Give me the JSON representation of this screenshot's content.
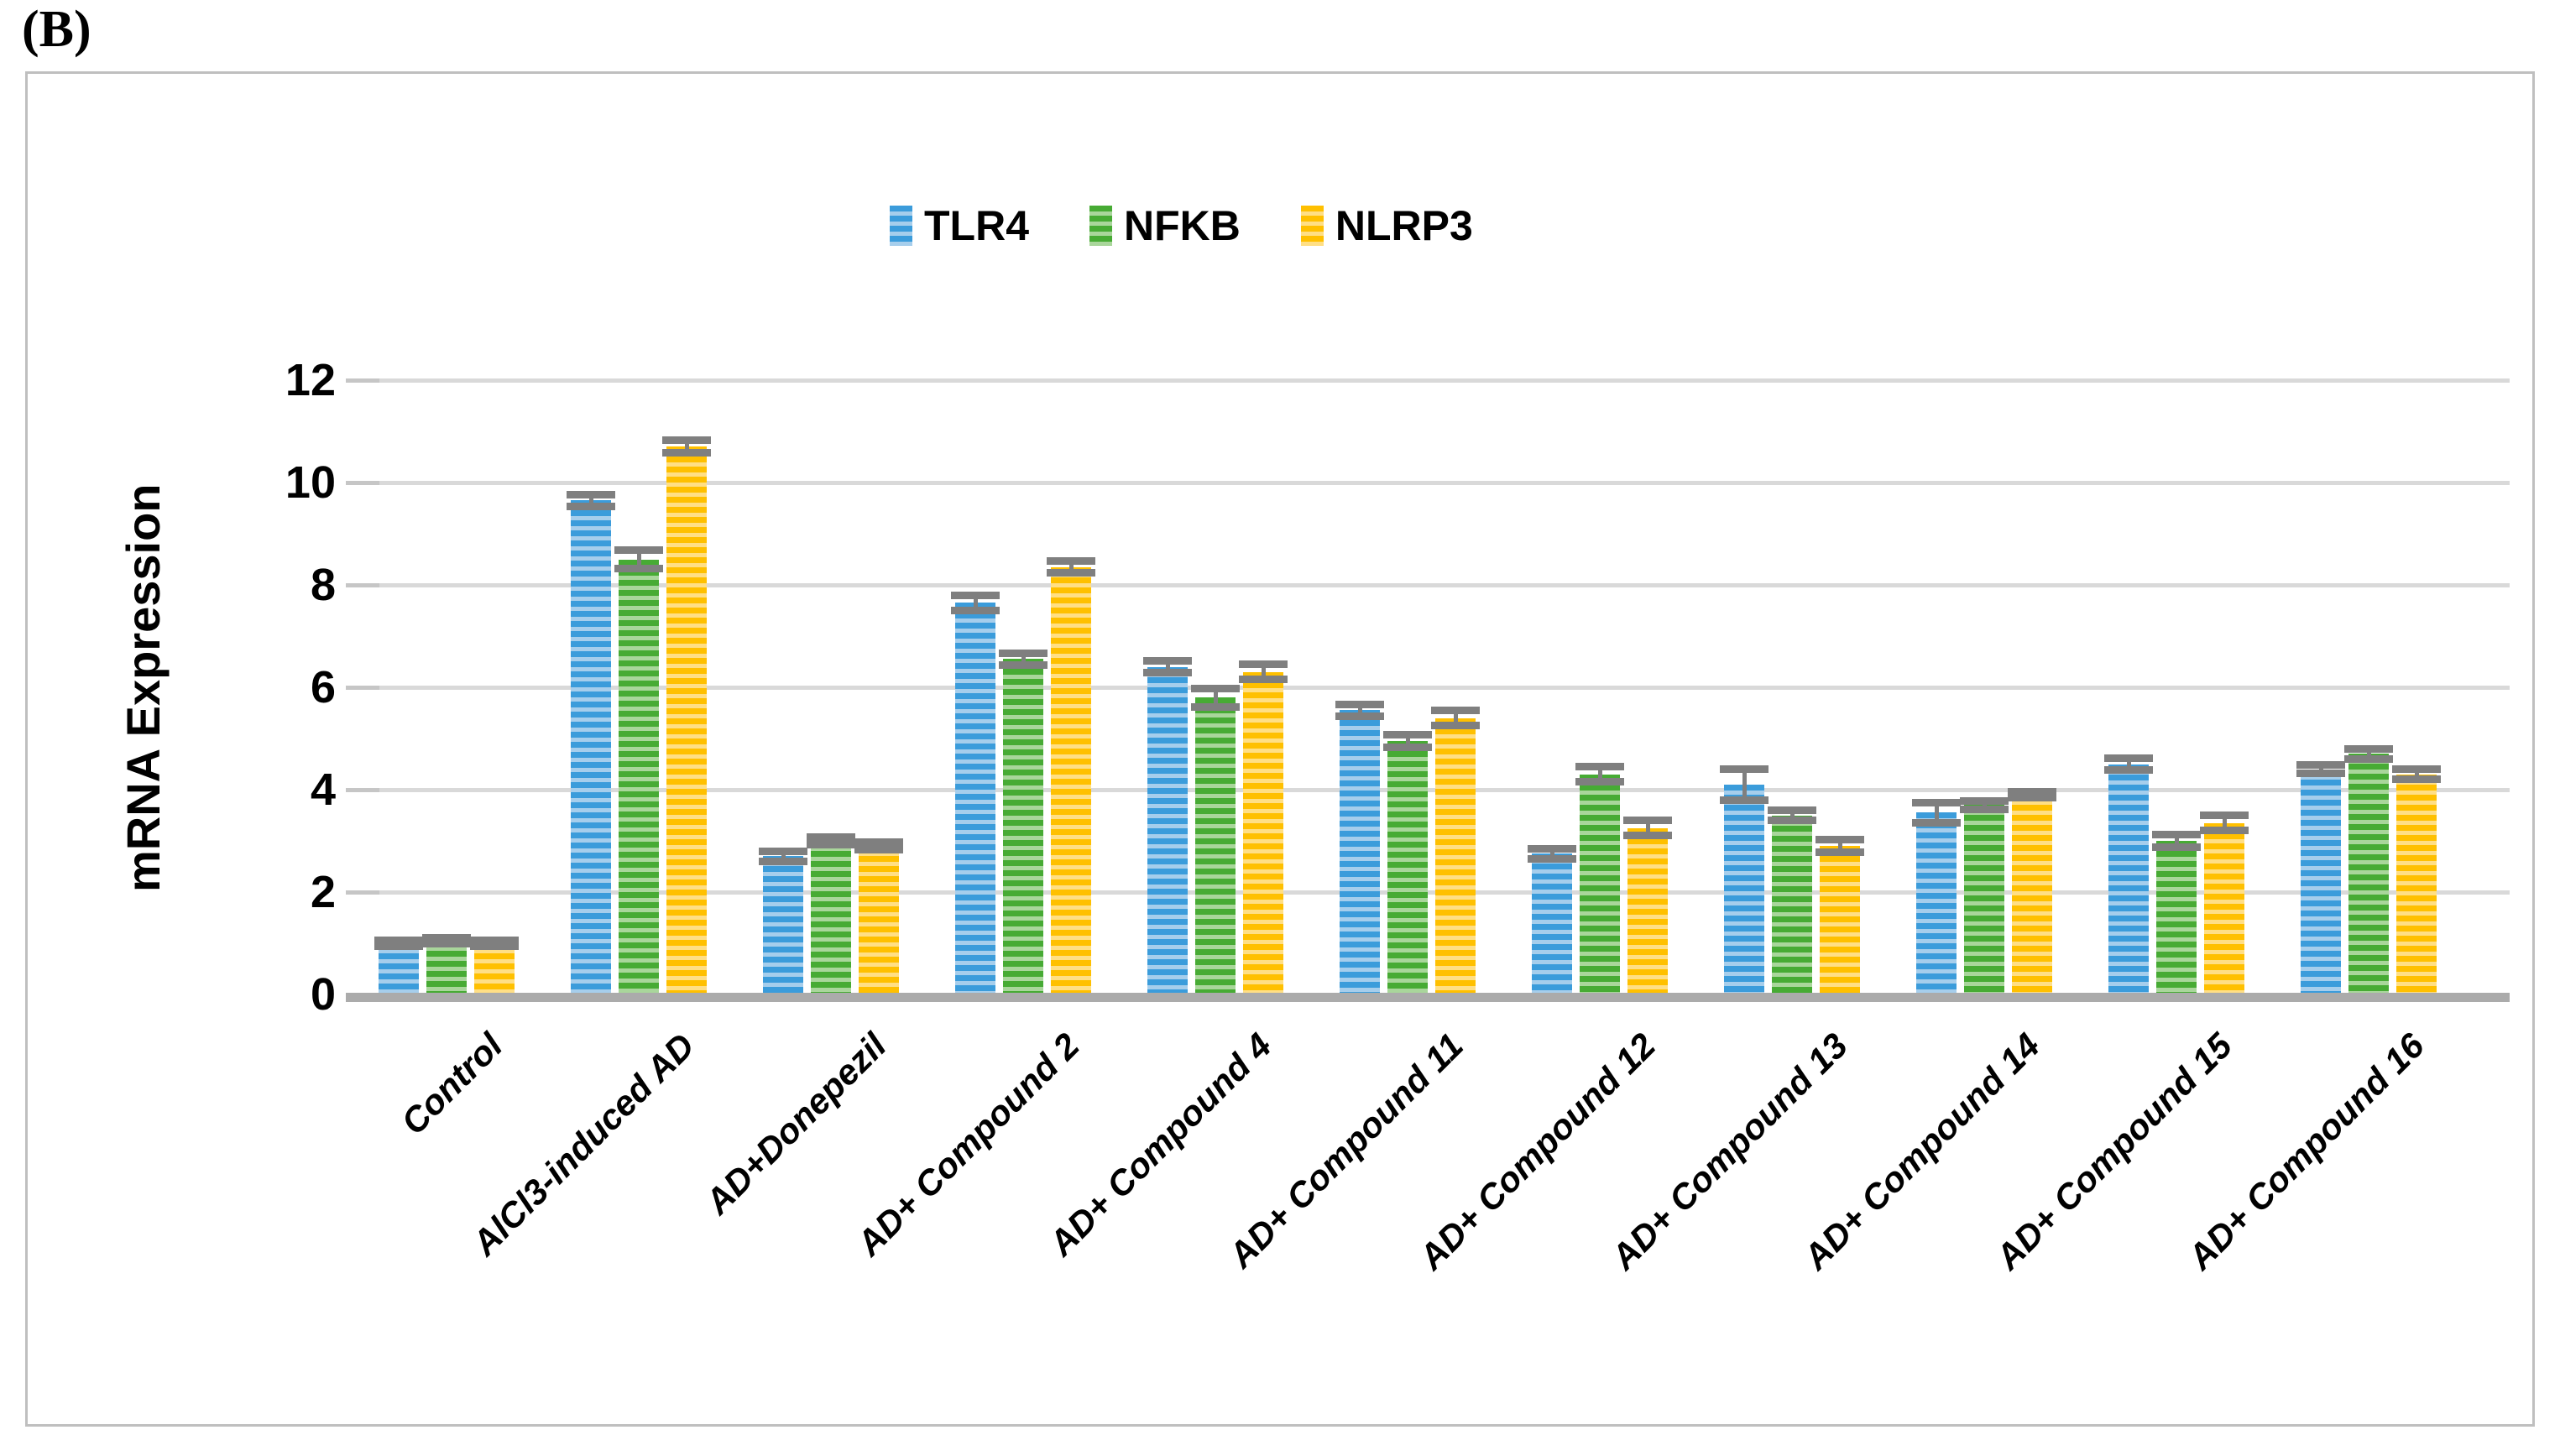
{
  "panel_label": "(B)",
  "chart_data": {
    "type": "bar",
    "title": "",
    "ylabel": "mRNA Expression",
    "xlabel": "",
    "ylim": [
      0,
      12
    ],
    "yticks": [
      0,
      2,
      4,
      6,
      8,
      10,
      12
    ],
    "grid": true,
    "legend_position": "top-center",
    "legend": [
      "TLR4",
      "NFKB",
      "NLRP3"
    ],
    "categories": [
      "Control",
      "AlCl3-induced AD",
      "AD+Donepezil",
      "AD+ Compound 2",
      "AD+ Compound 4",
      "AD+ Compound 11",
      "AD+ Compound 12",
      "AD+ Compound 13",
      "AD+ Compound 14",
      "AD+ Compound 15",
      "AD+ Compound 16"
    ],
    "series": [
      {
        "name": "TLR4",
        "color_dark": "#3B9CDB",
        "color_light": "#A6CEEC",
        "values": [
          1.0,
          9.65,
          2.7,
          7.65,
          6.4,
          5.55,
          2.75,
          4.1,
          3.55,
          4.5,
          4.4
        ],
        "errors": [
          0.05,
          0.12,
          0.1,
          0.15,
          0.12,
          0.12,
          0.1,
          0.3,
          0.2,
          0.12,
          0.08
        ]
      },
      {
        "name": "NFKB",
        "color_dark": "#47AB34",
        "color_light": "#A9D69B",
        "values": [
          1.05,
          8.5,
          3.0,
          6.55,
          5.8,
          4.95,
          4.3,
          3.5,
          3.7,
          3.0,
          4.7
        ],
        "errors": [
          0.05,
          0.18,
          0.08,
          0.12,
          0.18,
          0.12,
          0.15,
          0.1,
          0.08,
          0.12,
          0.1
        ]
      },
      {
        "name": "NLRP3",
        "color_dark": "#FFC000",
        "color_light": "#FFDF85",
        "values": [
          1.0,
          10.7,
          2.9,
          8.35,
          6.3,
          5.4,
          3.25,
          2.9,
          3.9,
          3.35,
          4.3
        ],
        "errors": [
          0.05,
          0.12,
          0.08,
          0.12,
          0.15,
          0.15,
          0.15,
          0.12,
          0.06,
          0.15,
          0.1
        ]
      }
    ],
    "error_bar_color": "#7F7F7F",
    "gridline_color": "#D9D9D9",
    "axis_line_color": "#ABABAB",
    "figure_border_color": "#BFBFBF"
  }
}
